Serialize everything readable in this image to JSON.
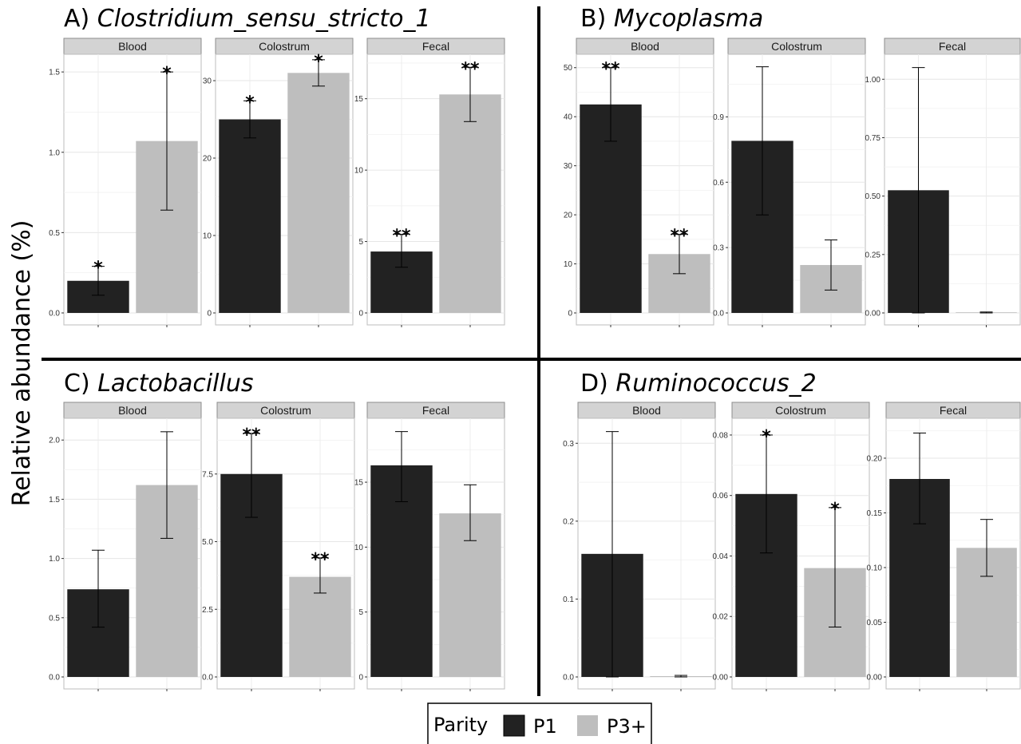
{
  "y_axis_label": "Relative abundance (%)",
  "legend": {
    "title": "Parity",
    "items": [
      {
        "label": "P1",
        "color": "#222222"
      },
      {
        "label": "P3+",
        "color": "#bebebe"
      }
    ]
  },
  "chart_data": [
    {
      "type": "bar",
      "prefix": "A) ",
      "genus": "Clostridium_sensu_stricto_1",
      "facets": [
        {
          "strip": "Blood",
          "ylim": [
            0,
            1.6
          ],
          "ticks": [
            "0.0",
            "0.5",
            "1.0",
            "1.5"
          ],
          "tick_values": [
            0,
            0.5,
            1.0,
            1.5
          ],
          "bars": [
            {
              "series": "P1",
              "value": 0.2,
              "err": [
                0.11,
                0.29
              ],
              "sig": "*"
            },
            {
              "series": "P3+",
              "value": 1.07,
              "err": [
                0.64,
                1.5
              ],
              "sig": "*"
            }
          ]
        },
        {
          "strip": "Colostrum",
          "ylim": [
            0,
            33.2
          ],
          "ticks": [
            "0",
            "10",
            "20",
            "30"
          ],
          "tick_values": [
            0,
            10,
            20,
            30
          ],
          "bars": [
            {
              "series": "P1",
              "value": 25.0,
              "err": [
                22.6,
                27.4
              ],
              "sig": "*"
            },
            {
              "series": "P3+",
              "value": 31.0,
              "err": [
                29.3,
                32.7
              ],
              "sig": "*"
            }
          ]
        },
        {
          "strip": "Fecal",
          "ylim": [
            0,
            18.0
          ],
          "ticks": [
            "0",
            "5",
            "10",
            "15"
          ],
          "tick_values": [
            0,
            5,
            10,
            15
          ],
          "bars": [
            {
              "series": "P1",
              "value": 4.3,
              "err": [
                3.2,
                5.5
              ],
              "sig": "**"
            },
            {
              "series": "P3+",
              "value": 15.3,
              "err": [
                13.4,
                17.2
              ],
              "sig": "**"
            }
          ]
        }
      ]
    },
    {
      "type": "bar",
      "prefix": "B) ",
      "genus": "Mycoplasma",
      "facets": [
        {
          "strip": "Blood",
          "ylim": [
            0,
            52.4
          ],
          "ticks": [
            "0",
            "10",
            "20",
            "30",
            "40",
            "50"
          ],
          "tick_values": [
            0,
            10,
            20,
            30,
            40,
            50
          ],
          "bars": [
            {
              "series": "P1",
              "value": 42.5,
              "err": [
                35.0,
                50.0
              ],
              "sig": "**"
            },
            {
              "series": "P3+",
              "value": 12.0,
              "err": [
                8.0,
                16.0
              ],
              "sig": "**"
            }
          ]
        },
        {
          "strip": "Colostrum",
          "ylim": [
            0,
            1.18
          ],
          "ticks": [
            "0.0",
            "0.3",
            "0.6",
            "0.9"
          ],
          "tick_values": [
            0,
            0.3,
            0.6,
            0.9
          ],
          "bars": [
            {
              "series": "P1",
              "value": 0.79,
              "err": [
                0.45,
                1.13
              ],
              "sig": ""
            },
            {
              "series": "P3+",
              "value": 0.22,
              "err": [
                0.105,
                0.335
              ],
              "sig": ""
            }
          ]
        },
        {
          "strip": "Fecal",
          "ylim": [
            0,
            1.1
          ],
          "ticks": [
            "0.00",
            "0.25",
            "0.50",
            "0.75",
            "1.00"
          ],
          "tick_values": [
            0,
            0.25,
            0.5,
            0.75,
            1.0
          ],
          "bars": [
            {
              "series": "P1",
              "value": 0.525,
              "err": [
                0.0,
                1.05
              ],
              "sig": ""
            },
            {
              "series": "P3+",
              "value": 0.002,
              "err": [
                0.0,
                0.004
              ],
              "sig": ""
            }
          ]
        }
      ]
    },
    {
      "type": "bar",
      "prefix": "C) ",
      "genus": "Lactobacillus",
      "facets": [
        {
          "strip": "Blood",
          "ylim": [
            0,
            2.17
          ],
          "ticks": [
            "0.0",
            "0.5",
            "1.0",
            "1.5",
            "2.0"
          ],
          "tick_values": [
            0,
            0.5,
            1.0,
            1.5,
            2.0
          ],
          "bars": [
            {
              "series": "P1",
              "value": 0.74,
              "err": [
                0.42,
                1.07
              ],
              "sig": ""
            },
            {
              "series": "P3+",
              "value": 1.62,
              "err": [
                1.17,
                2.07
              ],
              "sig": ""
            }
          ]
        },
        {
          "strip": "Colostrum",
          "ylim": [
            0,
            9.5
          ],
          "ticks": [
            "0.0",
            "2.5",
            "5.0",
            "7.5"
          ],
          "tick_values": [
            0,
            2.5,
            5.0,
            7.5
          ],
          "bars": [
            {
              "series": "P1",
              "value": 7.5,
              "err": [
                5.9,
                9.0
              ],
              "sig": "**"
            },
            {
              "series": "P3+",
              "value": 3.7,
              "err": [
                3.1,
                4.4
              ],
              "sig": "**"
            }
          ]
        },
        {
          "strip": "Fecal",
          "ylim": [
            0,
            19.8
          ],
          "ticks": [
            "0",
            "5",
            "10",
            "15"
          ],
          "tick_values": [
            0,
            5,
            10,
            15
          ],
          "bars": [
            {
              "series": "P1",
              "value": 16.3,
              "err": [
                13.5,
                18.9
              ],
              "sig": ""
            },
            {
              "series": "P3+",
              "value": 12.6,
              "err": [
                10.5,
                14.8
              ],
              "sig": ""
            }
          ]
        }
      ]
    },
    {
      "type": "bar",
      "prefix": "D) ",
      "genus": "Ruminococcus_2",
      "facets": [
        {
          "strip": "Blood",
          "ylim": [
            0,
            0.33
          ],
          "ticks": [
            "0.0",
            "0.1",
            "0.2",
            "0.3"
          ],
          "tick_values": [
            0,
            0.1,
            0.2,
            0.3
          ],
          "bars": [
            {
              "series": "P1",
              "value": 0.158,
              "err": [
                0.0,
                0.315
              ],
              "sig": ""
            },
            {
              "series": "P3+",
              "value": 0.001,
              "err": [
                0.0,
                0.002
              ],
              "sig": ""
            }
          ]
        },
        {
          "strip": "Colostrum",
          "ylim": [
            0,
            0.085
          ],
          "ticks": [
            "0.00",
            "0.02",
            "0.04",
            "0.06",
            "0.08"
          ],
          "tick_values": [
            0,
            0.02,
            0.04,
            0.06,
            0.08
          ],
          "bars": [
            {
              "series": "P1",
              "value": 0.0605,
              "err": [
                0.041,
                0.08
              ],
              "sig": "*"
            },
            {
              "series": "P3+",
              "value": 0.036,
              "err": [
                0.0165,
                0.056
              ],
              "sig": "*"
            }
          ]
        },
        {
          "strip": "Fecal",
          "ylim": [
            0,
            0.235
          ],
          "ticks": [
            "0.00",
            "0.05",
            "0.10",
            "0.15",
            "0.20"
          ],
          "tick_values": [
            0,
            0.05,
            0.1,
            0.15,
            0.2
          ],
          "bars": [
            {
              "series": "P1",
              "value": 0.181,
              "err": [
                0.14,
                0.223
              ],
              "sig": ""
            },
            {
              "series": "P3+",
              "value": 0.118,
              "err": [
                0.092,
                0.144
              ],
              "sig": ""
            }
          ]
        }
      ]
    }
  ]
}
